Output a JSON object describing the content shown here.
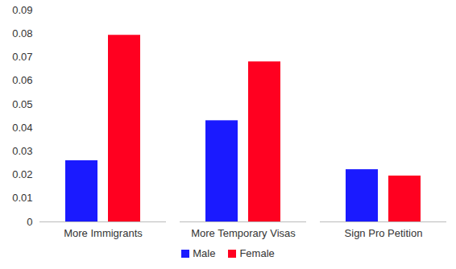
{
  "chart_data": {
    "type": "bar",
    "categories": [
      "More Immigrants",
      "More Temporary Visas",
      "Sign Pro Petition"
    ],
    "series": [
      {
        "name": "Male",
        "color": "#1a1aff",
        "values": [
          0.026,
          0.043,
          0.0222
        ]
      },
      {
        "name": "Female",
        "color": "#ff0020",
        "values": [
          0.0793,
          0.068,
          0.0195
        ]
      }
    ],
    "ylim": [
      0,
      0.09
    ],
    "yticks": [
      0,
      0.01,
      0.02,
      0.03,
      0.04,
      0.05,
      0.06,
      0.07,
      0.08,
      0.09
    ],
    "grid": false,
    "legend": "bottom"
  }
}
